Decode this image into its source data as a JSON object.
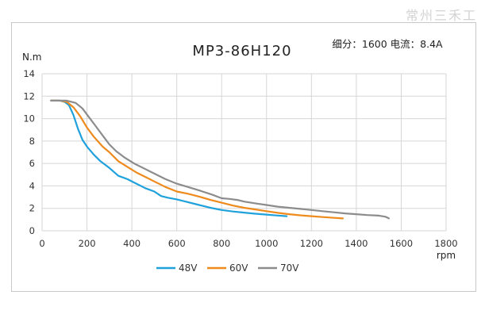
{
  "watermark": "常州三禾工",
  "chart_data": {
    "type": "line",
    "title": "MP3-86H120",
    "subtitle": "细分：1600 电流：8.4A",
    "ylabel": "N.m",
    "xlabel": "rpm",
    "xlim": [
      0,
      1800
    ],
    "ylim": [
      0,
      14
    ],
    "xticks": [
      0,
      200,
      400,
      600,
      800,
      1000,
      1200,
      1400,
      1600,
      1800
    ],
    "yticks": [
      0,
      2,
      4,
      6,
      8,
      10,
      12,
      14
    ],
    "grid": true,
    "legend": "bottom",
    "series": [
      {
        "name": "48V",
        "color": "#1fa1dc",
        "x": [
          40,
          80,
          100,
          120,
          140,
          160,
          180,
          200,
          230,
          260,
          300,
          340,
          380,
          420,
          460,
          500,
          530,
          560,
          600,
          650,
          700,
          750,
          800,
          850,
          900,
          950,
          1000,
          1050,
          1090
        ],
        "y": [
          11.6,
          11.6,
          11.5,
          11.2,
          10.3,
          9.1,
          8.1,
          7.5,
          6.8,
          6.2,
          5.6,
          4.9,
          4.6,
          4.2,
          3.8,
          3.5,
          3.1,
          2.95,
          2.8,
          2.55,
          2.3,
          2.05,
          1.85,
          1.72,
          1.62,
          1.52,
          1.44,
          1.36,
          1.3
        ]
      },
      {
        "name": "60V",
        "color": "#ef8a1c",
        "x": [
          40,
          80,
          110,
          140,
          170,
          200,
          230,
          270,
          300,
          340,
          380,
          420,
          460,
          500,
          550,
          600,
          650,
          700,
          750,
          800,
          850,
          900,
          950,
          1000,
          1050,
          1100,
          1150,
          1200,
          1250,
          1300,
          1340
        ],
        "y": [
          11.6,
          11.6,
          11.5,
          11.0,
          10.2,
          9.2,
          8.4,
          7.5,
          7.0,
          6.2,
          5.7,
          5.2,
          4.8,
          4.4,
          3.9,
          3.5,
          3.3,
          3.05,
          2.75,
          2.5,
          2.25,
          2.05,
          1.9,
          1.75,
          1.6,
          1.48,
          1.38,
          1.3,
          1.22,
          1.15,
          1.1
        ]
      },
      {
        "name": "70V",
        "color": "#8c8c8c",
        "x": [
          40,
          80,
          110,
          150,
          180,
          210,
          240,
          270,
          300,
          330,
          370,
          410,
          450,
          500,
          550,
          600,
          650,
          700,
          760,
          800,
          830,
          870,
          900,
          950,
          1000,
          1050,
          1100,
          1150,
          1200,
          1250,
          1300,
          1350,
          1400,
          1450,
          1500,
          1530,
          1545
        ],
        "y": [
          11.6,
          11.6,
          11.6,
          11.4,
          10.9,
          10.1,
          9.3,
          8.5,
          7.7,
          7.1,
          6.5,
          6.0,
          5.6,
          5.1,
          4.6,
          4.2,
          3.9,
          3.6,
          3.2,
          2.9,
          2.85,
          2.75,
          2.6,
          2.45,
          2.3,
          2.15,
          2.05,
          1.95,
          1.85,
          1.75,
          1.65,
          1.55,
          1.48,
          1.4,
          1.35,
          1.25,
          1.1
        ]
      }
    ]
  }
}
